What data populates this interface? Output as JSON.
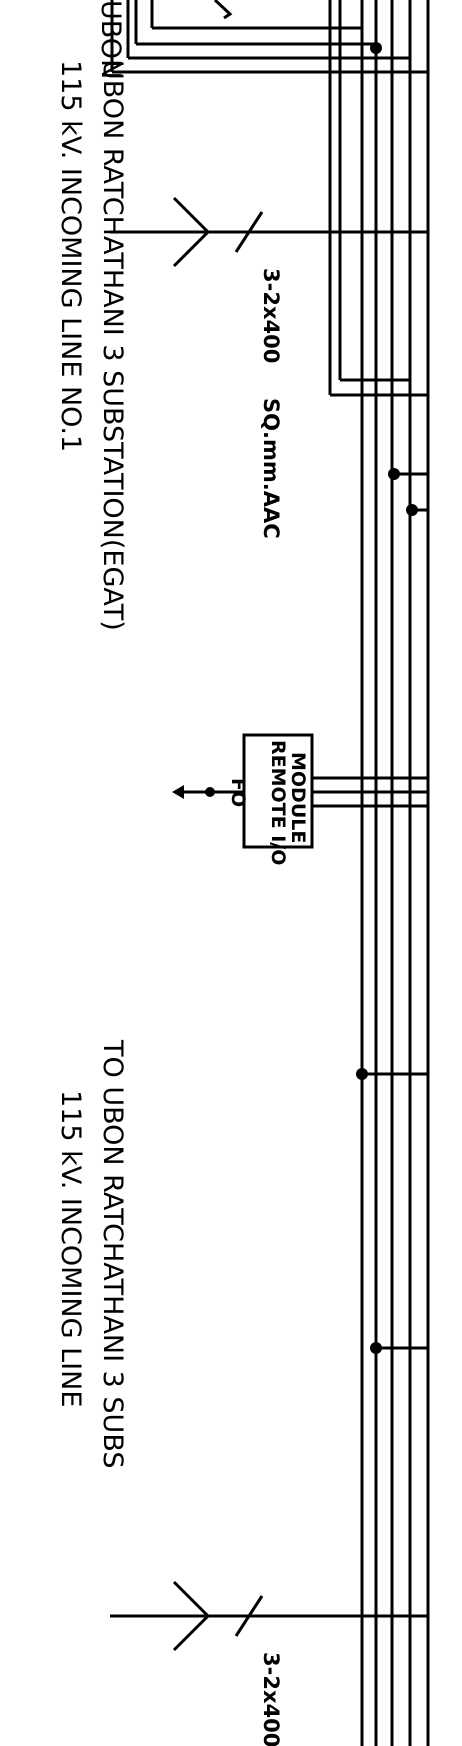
{
  "drawing": {
    "line1": {
      "title": "115 kV. INCOMING LINE NO.1",
      "from": "UBON RATCHATHANI 3 SUBSTATION(EGAT)",
      "conductor_left": "3-2x400",
      "conductor_right": "SQ.mm.AAC"
    },
    "line2": {
      "title": "115 kV. INCOMING LINE",
      "from": "TO UBON RATCHATHANI 3 SUBS",
      "conductor": "3-2x400"
    },
    "top_partial_text": "UBON",
    "remote_module": {
      "line_a": "REMOTE I/O",
      "line_b": "MODULE",
      "link": "FO"
    },
    "colors": {
      "ink": "#000000",
      "paper": "#ffffff"
    }
  }
}
